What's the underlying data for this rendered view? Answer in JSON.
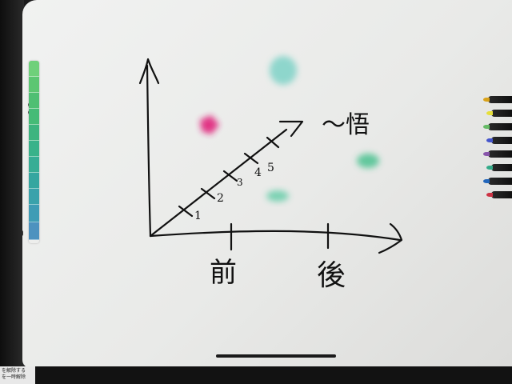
{
  "colors": {
    "ink": "#111111",
    "palette": [
      "#6fd07a",
      "#5cc672",
      "#4fbf73",
      "#45bb77",
      "#3db47f",
      "#39b28a",
      "#37ad95",
      "#35a6a0",
      "#3aa2ab",
      "#3f9cb5",
      "#4d92bf"
    ],
    "blobs": [
      "#e0207a",
      "#6fcfc2",
      "#3fbf8a",
      "#55c9a0"
    ],
    "pen_tips": [
      "#d9a21a",
      "#e6df3a",
      "#66bb66",
      "#4455cc",
      "#8855aa",
      "#33aa88",
      "#2266bb",
      "#cc3344"
    ]
  },
  "sketch": {
    "diagonal_ticks": [
      "1",
      "2",
      "3",
      "4",
      "5"
    ],
    "diagonal_end_label": "〜悟",
    "x_ticks": [
      "前",
      "後"
    ]
  },
  "hint": {
    "line1": "を解除する",
    "line2": "を一時解除"
  },
  "icons": {
    "eraser": "eraser-icon",
    "lasso": "lasso-icon"
  }
}
